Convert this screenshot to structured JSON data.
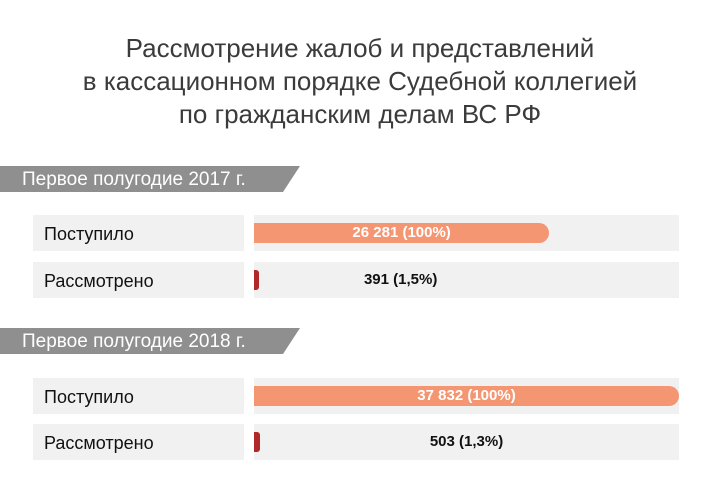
{
  "title_lines": [
    "Рассмотрение жалоб и представлений",
    "в кассационном порядке Судебной коллегией",
    "по гражданским делам ВС РФ"
  ],
  "colors": {
    "received": "#f59673",
    "reviewed": "#b0282a",
    "section_tag": "#8f8f8f",
    "row_bg": "#f1f1f1"
  },
  "chart_data": {
    "type": "bar",
    "orientation": "horizontal",
    "title": "Рассмотрение жалоб и представлений в кассационном порядке Судебной коллегией по гражданским делам ВС РФ",
    "xlim": [
      0,
      37832
    ],
    "grid": false,
    "groups": [
      {
        "label": "Первое полугодие 2017 г.",
        "rows": [
          {
            "category": "Поступило",
            "value": 26281,
            "label": "26 281 (100%)",
            "color": "#f59673"
          },
          {
            "category": "Рассмотрено",
            "value": 391,
            "label": "391 (1,5%)",
            "color": "#b0282a"
          }
        ]
      },
      {
        "label": "Первое полугодие 2018 г.",
        "rows": [
          {
            "category": "Поступило",
            "value": 37832,
            "label": "37 832 (100%)",
            "color": "#f59673"
          },
          {
            "category": "Рассмотрено",
            "value": 503,
            "label": "503 (1,3%)",
            "color": "#b0282a"
          }
        ]
      }
    ]
  }
}
